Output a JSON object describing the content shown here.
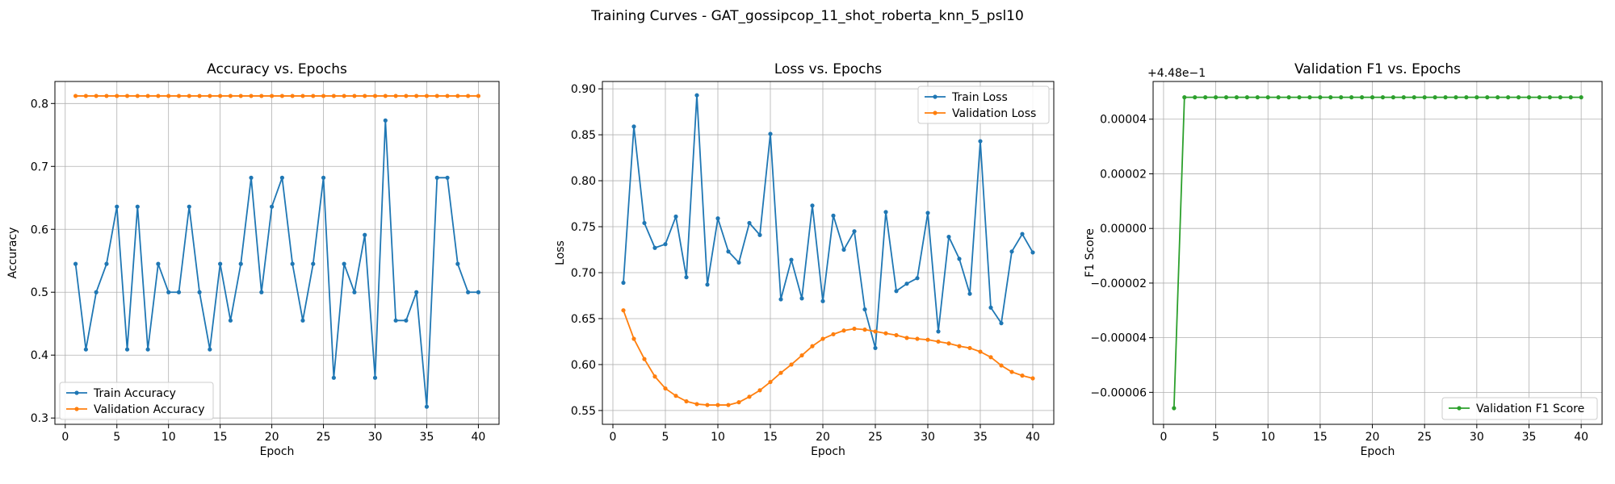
{
  "figure": {
    "suptitle": "Training Curves - GAT_gossipcop_11_shot_roberta_knn_5_psl10"
  },
  "colors": {
    "blue": "#1f77b4",
    "orange": "#ff7f0e",
    "green": "#2ca02c",
    "grid": "#b0b0b0"
  },
  "chart_data": [
    {
      "type": "line",
      "title": "Accuracy vs. Epochs",
      "xlabel": "Epoch",
      "ylabel": "Accuracy",
      "xlim": [
        -1,
        42
      ],
      "ylim": [
        0.29,
        0.835
      ],
      "xticks": [
        0,
        5,
        10,
        15,
        20,
        25,
        30,
        35,
        40
      ],
      "yticks": [
        0.3,
        0.4,
        0.5,
        0.6,
        0.7,
        0.8
      ],
      "ytick_labels": [
        "0.3",
        "0.4",
        "0.5",
        "0.6",
        "0.7",
        "0.8"
      ],
      "grid": true,
      "legend_position": "lower-left",
      "x": [
        1,
        2,
        3,
        4,
        5,
        6,
        7,
        8,
        9,
        10,
        11,
        12,
        13,
        14,
        15,
        16,
        17,
        18,
        19,
        20,
        21,
        22,
        23,
        24,
        25,
        26,
        27,
        28,
        29,
        30,
        31,
        32,
        33,
        34,
        35,
        36,
        37,
        38,
        39,
        40
      ],
      "series": [
        {
          "name": "Train Accuracy",
          "color": "#1f77b4",
          "values": [
            0.545,
            0.409,
            0.5,
            0.545,
            0.636,
            0.409,
            0.636,
            0.409,
            0.545,
            0.5,
            0.5,
            0.636,
            0.5,
            0.409,
            0.545,
            0.455,
            0.545,
            0.682,
            0.5,
            0.636,
            0.682,
            0.545,
            0.455,
            0.545,
            0.682,
            0.364,
            0.545,
            0.5,
            0.591,
            0.364,
            0.773,
            0.455,
            0.455,
            0.5,
            0.318,
            0.682,
            0.682,
            0.545,
            0.5,
            0.5
          ]
        },
        {
          "name": "Validation Accuracy",
          "color": "#ff7f0e",
          "values": [
            0.812,
            0.812,
            0.812,
            0.812,
            0.812,
            0.812,
            0.812,
            0.812,
            0.812,
            0.812,
            0.812,
            0.812,
            0.812,
            0.812,
            0.812,
            0.812,
            0.812,
            0.812,
            0.812,
            0.812,
            0.812,
            0.812,
            0.812,
            0.812,
            0.812,
            0.812,
            0.812,
            0.812,
            0.812,
            0.812,
            0.812,
            0.812,
            0.812,
            0.812,
            0.812,
            0.812,
            0.812,
            0.812,
            0.812,
            0.812
          ]
        }
      ]
    },
    {
      "type": "line",
      "title": "Loss vs. Epochs",
      "xlabel": "Epoch",
      "ylabel": "Loss",
      "xlim": [
        -1,
        42
      ],
      "ylim": [
        0.535,
        0.908
      ],
      "xticks": [
        0,
        5,
        10,
        15,
        20,
        25,
        30,
        35,
        40
      ],
      "yticks": [
        0.55,
        0.6,
        0.65,
        0.7,
        0.75,
        0.8,
        0.85,
        0.9
      ],
      "ytick_labels": [
        "0.55",
        "0.60",
        "0.65",
        "0.70",
        "0.75",
        "0.80",
        "0.85",
        "0.90"
      ],
      "grid": true,
      "legend_position": "upper-right",
      "x": [
        1,
        2,
        3,
        4,
        5,
        6,
        7,
        8,
        9,
        10,
        11,
        12,
        13,
        14,
        15,
        16,
        17,
        18,
        19,
        20,
        21,
        22,
        23,
        24,
        25,
        26,
        27,
        28,
        29,
        30,
        31,
        32,
        33,
        34,
        35,
        36,
        37,
        38,
        39,
        40
      ],
      "series": [
        {
          "name": "Train Loss",
          "color": "#1f77b4",
          "values": [
            0.689,
            0.859,
            0.754,
            0.727,
            0.731,
            0.761,
            0.695,
            0.893,
            0.687,
            0.759,
            0.723,
            0.711,
            0.754,
            0.741,
            0.851,
            0.671,
            0.714,
            0.672,
            0.773,
            0.669,
            0.762,
            0.725,
            0.745,
            0.66,
            0.618,
            0.766,
            0.68,
            0.688,
            0.694,
            0.765,
            0.636,
            0.739,
            0.715,
            0.677,
            0.843,
            0.662,
            0.645,
            0.723,
            0.742,
            0.722
          ]
        },
        {
          "name": "Validation Loss",
          "color": "#ff7f0e",
          "values": [
            0.659,
            0.628,
            0.606,
            0.587,
            0.574,
            0.566,
            0.56,
            0.557,
            0.556,
            0.556,
            0.556,
            0.559,
            0.565,
            0.572,
            0.581,
            0.591,
            0.6,
            0.61,
            0.62,
            0.628,
            0.633,
            0.637,
            0.639,
            0.638,
            0.636,
            0.634,
            0.632,
            0.629,
            0.628,
            0.627,
            0.625,
            0.623,
            0.62,
            0.618,
            0.614,
            0.608,
            0.599,
            0.592,
            0.588,
            0.585
          ]
        }
      ]
    },
    {
      "type": "line",
      "title": "Validation F1 vs. Epochs",
      "xlabel": "Epoch",
      "ylabel": "F1 Score",
      "offset_label": "+4.48e−1",
      "xlim": [
        -1,
        42
      ],
      "ylim": [
        -7.17e-05,
        5.38e-05
      ],
      "xticks": [
        0,
        5,
        10,
        15,
        20,
        25,
        30,
        35,
        40
      ],
      "yticks": [
        -6e-05,
        -4e-05,
        -2e-05,
        0.0,
        2e-05,
        4e-05
      ],
      "ytick_labels": [
        "−0.00006",
        "−0.00004",
        "−0.00002",
        "0.00000",
        "0.00002",
        "0.00004"
      ],
      "grid": true,
      "legend_position": "lower-right",
      "x": [
        1,
        2,
        3,
        4,
        5,
        6,
        7,
        8,
        9,
        10,
        11,
        12,
        13,
        14,
        15,
        16,
        17,
        18,
        19,
        20,
        21,
        22,
        23,
        24,
        25,
        26,
        27,
        28,
        29,
        30,
        31,
        32,
        33,
        34,
        35,
        36,
        37,
        38,
        39,
        40
      ],
      "series": [
        {
          "name": "Validation F1 Score",
          "color": "#2ca02c",
          "values": [
            -6.58e-05,
            4.8e-05,
            4.8e-05,
            4.8e-05,
            4.8e-05,
            4.8e-05,
            4.8e-05,
            4.8e-05,
            4.8e-05,
            4.8e-05,
            4.8e-05,
            4.8e-05,
            4.8e-05,
            4.8e-05,
            4.8e-05,
            4.8e-05,
            4.8e-05,
            4.8e-05,
            4.8e-05,
            4.8e-05,
            4.8e-05,
            4.8e-05,
            4.8e-05,
            4.8e-05,
            4.8e-05,
            4.8e-05,
            4.8e-05,
            4.8e-05,
            4.8e-05,
            4.8e-05,
            4.8e-05,
            4.8e-05,
            4.8e-05,
            4.8e-05,
            4.8e-05,
            4.8e-05,
            4.8e-05,
            4.8e-05,
            4.8e-05,
            4.8e-05
          ]
        }
      ]
    }
  ]
}
